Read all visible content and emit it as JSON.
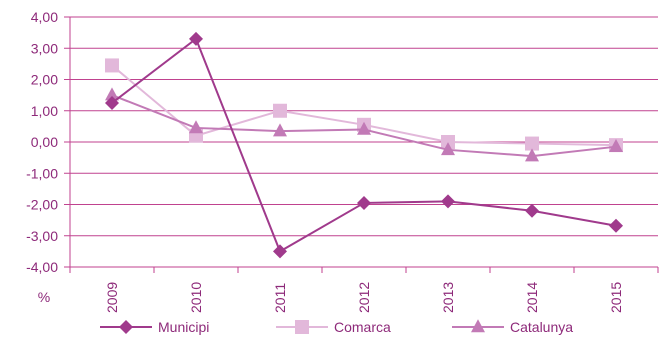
{
  "chart_data": {
    "type": "line",
    "title": "",
    "xlabel": "",
    "ylabel": "%",
    "categories": [
      "2009",
      "2010",
      "2011",
      "2012",
      "2013",
      "2014",
      "2015"
    ],
    "y_ticks": [
      "4,00",
      "3,00",
      "2,00",
      "1,00",
      "0,00",
      "-1,00",
      "-2,00",
      "-3,00",
      "-4,00"
    ],
    "ylim": [
      -4,
      4
    ],
    "grid": true,
    "legend_position": "bottom",
    "series": [
      {
        "name": "Municipi",
        "marker": "diamond",
        "color": "#a03a8c",
        "values": [
          1.25,
          3.3,
          -3.5,
          -1.95,
          -1.9,
          -2.2,
          -2.68
        ]
      },
      {
        "name": "Comarca",
        "marker": "square",
        "color": "#e2b8da",
        "values": [
          2.45,
          0.2,
          1.0,
          0.55,
          0.0,
          -0.05,
          -0.1
        ]
      },
      {
        "name": "Catalunya",
        "marker": "triangle",
        "color": "#c27ab6",
        "values": [
          1.5,
          0.45,
          0.35,
          0.4,
          -0.25,
          -0.45,
          -0.15
        ]
      }
    ]
  }
}
